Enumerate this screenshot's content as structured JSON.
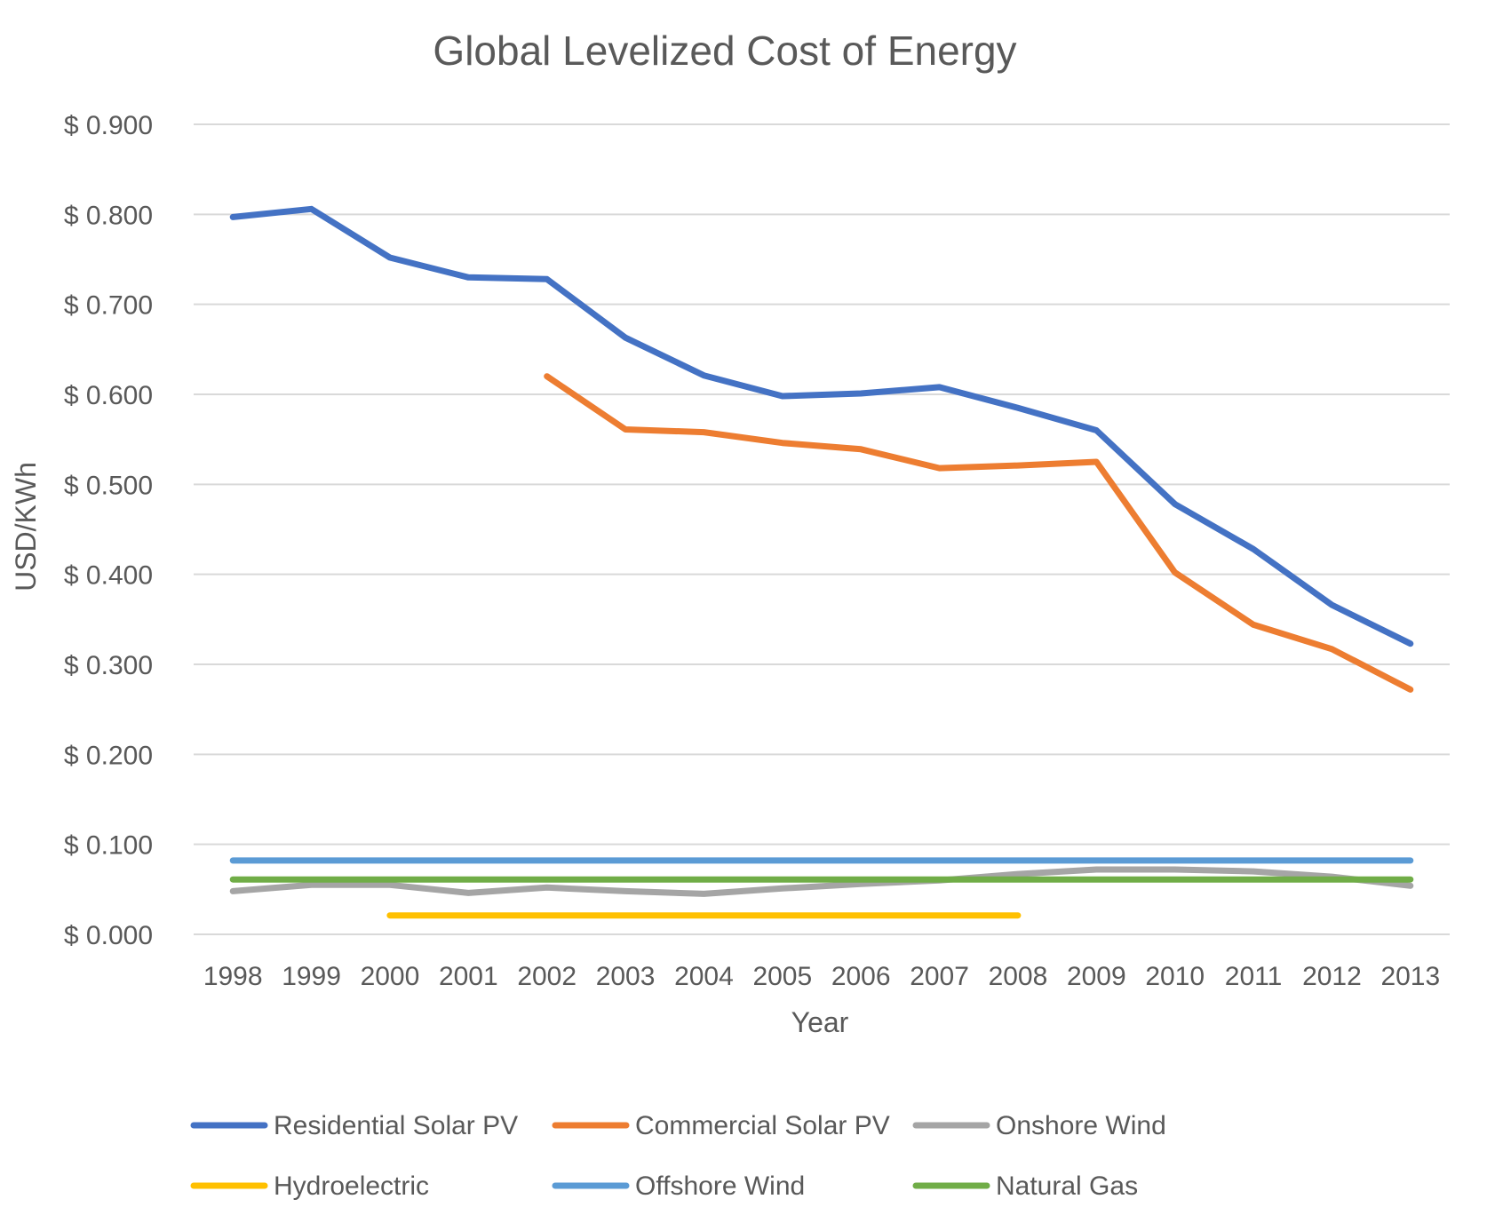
{
  "chart_data": {
    "type": "line",
    "title": "Global Levelized Cost of Energy",
    "xlabel": "Year",
    "ylabel": "USD/KWh",
    "ylim": [
      0,
      0.9
    ],
    "y_tick_values": [
      0,
      0.1,
      0.2,
      0.3,
      0.4,
      0.5,
      0.6,
      0.7,
      0.8,
      0.9
    ],
    "y_tick_labels": [
      "$ 0.000",
      "$ 0.100",
      "$ 0.200",
      "$ 0.300",
      "$ 0.400",
      "$ 0.500",
      "$ 0.600",
      "$ 0.700",
      "$ 0.800",
      "$ 0.900"
    ],
    "categories": [
      "1998",
      "1999",
      "2000",
      "2001",
      "2002",
      "2003",
      "2004",
      "2005",
      "2006",
      "2007",
      "2008",
      "2009",
      "2010",
      "2011",
      "2012",
      "2013"
    ],
    "grid": true,
    "legend_position": "bottom",
    "series": [
      {
        "name": "Residential Solar PV",
        "color": "#4472C4",
        "values": [
          0.797,
          0.806,
          0.752,
          0.73,
          0.728,
          0.663,
          0.621,
          0.598,
          0.601,
          0.608,
          0.585,
          0.56,
          0.478,
          0.428,
          0.366,
          0.323
        ]
      },
      {
        "name": "Commercial Solar PV",
        "color": "#ED7D31",
        "values": [
          null,
          null,
          null,
          null,
          0.62,
          0.561,
          0.558,
          0.546,
          0.539,
          0.518,
          0.521,
          0.525,
          0.402,
          0.344,
          0.317,
          0.272
        ]
      },
      {
        "name": "Onshore Wind",
        "color": "#A5A5A5",
        "values": [
          0.048,
          0.055,
          0.055,
          0.046,
          0.052,
          0.048,
          0.045,
          0.051,
          0.056,
          0.06,
          0.067,
          0.072,
          0.072,
          0.07,
          0.064,
          0.054
        ]
      },
      {
        "name": "Hydroelectric",
        "color": "#FFC000",
        "values": [
          null,
          null,
          0.021,
          0.021,
          0.021,
          0.021,
          0.021,
          0.021,
          0.021,
          0.021,
          0.021,
          null,
          null,
          null,
          null,
          null
        ]
      },
      {
        "name": "Offshore Wind",
        "color": "#5B9BD5",
        "values": [
          0.082,
          0.082,
          0.082,
          0.082,
          0.082,
          0.082,
          0.082,
          0.082,
          0.082,
          0.082,
          0.082,
          0.082,
          0.082,
          0.082,
          0.082,
          0.082
        ]
      },
      {
        "name": "Natural Gas",
        "color": "#70AD47",
        "values": [
          0.061,
          0.061,
          0.061,
          0.061,
          0.061,
          0.061,
          0.061,
          0.061,
          0.061,
          0.061,
          0.061,
          0.061,
          0.061,
          0.061,
          0.061,
          0.061
        ]
      }
    ]
  },
  "colors": {
    "gridline": "#D9D9D9",
    "text": "#595959"
  }
}
